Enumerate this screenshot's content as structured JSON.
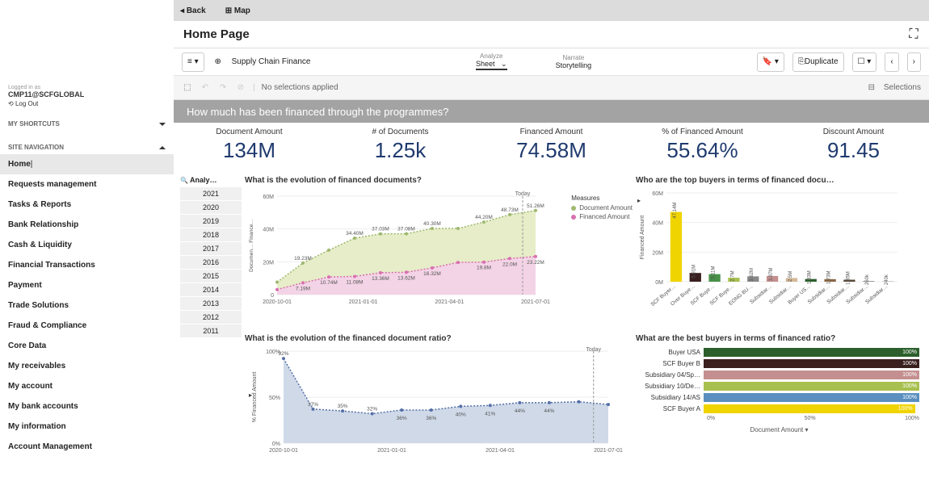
{
  "top": {
    "back": "Back",
    "map": "Map"
  },
  "page_title": "Home Page",
  "toolbar": {
    "app_label": "Supply Chain Finance",
    "tab_analyze_sm": "Analyze",
    "tab_analyze": "Sheet",
    "tab_narrate_sm": "Narrate",
    "tab_narrate": "Storytelling",
    "duplicate": "Duplicate"
  },
  "selbar": {
    "none": "No selections applied",
    "sel": "Selections"
  },
  "question": "How much has been financed through the programmes?",
  "kpi": [
    {
      "label": "Document Amount",
      "value": "134M"
    },
    {
      "label": "# of Documents",
      "value": "1.25k"
    },
    {
      "label": "Financed Amount",
      "value": "74.58M"
    },
    {
      "label": "% of Financed Amount",
      "value": "55.64%"
    },
    {
      "label": "Discount Amount",
      "value": "91.45"
    }
  ],
  "user": {
    "logged": "Logged in as",
    "name": "CMP11@SCFGLOBAL",
    "logout": "Log Out"
  },
  "sections": {
    "shortcuts": "MY SHORTCUTS",
    "sitenav": "SITE NAVIGATION"
  },
  "nav": [
    "Home",
    "Requests management",
    "Tasks & Reports",
    "Bank Relationship",
    "Cash & Liquidity",
    "Financial Transactions",
    "Payment",
    "Trade Solutions",
    "Fraud & Compliance",
    "Core Data",
    "My receivables",
    "My account",
    "My bank accounts",
    "My information",
    "Account Management"
  ],
  "years": {
    "header": "Analy…",
    "items": [
      "2021",
      "2020",
      "2019",
      "2018",
      "2017",
      "2016",
      "2015",
      "2014",
      "2013",
      "2012",
      "2011"
    ]
  },
  "chart1": {
    "title": "What is the evolution of financed documents?",
    "today": "Today",
    "measures_title": "Measures",
    "legend": [
      {
        "label": "Document Amount",
        "color": "#9fb86f"
      },
      {
        "label": "Financed Amount",
        "color": "#d96fb0"
      }
    ],
    "ytick": [
      "0",
      "20M",
      "40M",
      "60M"
    ],
    "xtick": [
      "2020-10-01",
      "2021-01-01",
      "2021-04-01",
      "2021-07-01"
    ],
    "doc_series": [
      7.6,
      19.23,
      27.08,
      34.4,
      37.03,
      37.08,
      40.3,
      40.3,
      44.2,
      48.73,
      51.26
    ],
    "doc_labels": [
      "",
      "19.23M",
      "",
      "34.40M",
      "37.03M",
      "37.08M",
      "40.30M",
      "",
      "44.20M",
      "48.73M",
      "51.26M"
    ],
    "fin_series": [
      3.1,
      7.19,
      10.74,
      11.08,
      13.36,
      13.62,
      16.32,
      19.6,
      19.8,
      22.0,
      23.22
    ],
    "fin_labels": [
      "",
      "7.19M",
      "10.74M",
      "11.08M",
      "13.36M",
      "13.62M",
      "16.32M",
      "",
      "19.8M",
      "22.0M",
      "23.22M"
    ],
    "fin_top_labels": [
      "",
      "",
      "",
      "",
      "",
      "",
      "",
      "",
      "",
      "44.61M",
      ""
    ],
    "bg_doc": "#e6edc8",
    "bg_fin": "#f3d4e6",
    "line_doc": "#9fb86f",
    "line_fin": "#d96fb0",
    "ymax": 60
  },
  "chart2": {
    "title": "What is the evolution of the financed document ratio?",
    "today": "Today",
    "ytick": [
      "0%",
      "50%",
      "100%"
    ],
    "xtick": [
      "2020-10-01",
      "2021-01-01",
      "2021-04-01",
      "2021-07-01"
    ],
    "series": [
      92,
      37,
      35,
      32,
      36,
      36,
      40,
      41,
      44,
      44,
      45,
      42
    ],
    "labels": [
      "92%",
      "37%",
      "35%",
      "32%",
      "36%",
      "36%",
      "40%",
      "41%",
      "44%",
      "44%",
      "",
      ""
    ],
    "fill": "#cfd9e8",
    "line": "#5670a8",
    "ymax": 100,
    "yaxis_title": "% Financed Amount"
  },
  "chart3": {
    "title": "Who are the top buyers in terms of financed docu…",
    "ytick": [
      "0M",
      "20M",
      "40M",
      "60M"
    ],
    "bars": [
      {
        "label": "SCF Buyer…",
        "value": 47.14,
        "color": "#f0d400",
        "txt": "47.14M"
      },
      {
        "label": "Over Buye…",
        "value": 5.91,
        "color": "#3a1f1f",
        "txt": "5.91M"
      },
      {
        "label": "SCF Buye…",
        "value": 5.11,
        "color": "#489048",
        "txt": "5.11M"
      },
      {
        "label": "SCF Buye…",
        "value": 2.7,
        "color": "#a8c050",
        "txt": "2.7M"
      },
      {
        "label": "EONG BU…",
        "value": 3.62,
        "color": "#888888",
        "txt": "3.62M"
      },
      {
        "label": "Subsidiar…",
        "value": 3.87,
        "color": "#c48f8f",
        "txt": "3.87M"
      },
      {
        "label": "Subsidiar…",
        "value": 2.5,
        "color": "#d4b896",
        "txt": "2.5M"
      },
      {
        "label": "Buyer US…",
        "value": 1.83,
        "color": "#2c5f2c",
        "txt": "1.83M"
      },
      {
        "label": "Subsidiar…",
        "value": 1.73,
        "color": "#886644",
        "txt": "1.73M"
      },
      {
        "label": "Subsidiar…",
        "value": 1.35,
        "color": "#5a4a3a",
        "txt": "1.35M"
      },
      {
        "label": "Subsidiar…",
        "value": 0.26,
        "color": "#333333",
        "txt": "260k"
      },
      {
        "label": "Subsidiar…",
        "value": 0.24,
        "color": "#999999",
        "txt": "240k"
      }
    ],
    "ymax": 60,
    "yaxis_title": "Financed Amount"
  },
  "chart4": {
    "title": "What are the best buyers in terms of financed ratio?",
    "bars": [
      {
        "label": "Buyer USA",
        "value": 100,
        "color": "#2c5f2c"
      },
      {
        "label": "SCF Buyer B",
        "value": 100,
        "color": "#3a1f1f"
      },
      {
        "label": "Subsidiary 04/Sp…",
        "value": 100,
        "color": "#c48f8f"
      },
      {
        "label": "Subsidiary 10/De…",
        "value": 100,
        "color": "#a8c050"
      },
      {
        "label": "Subsidiary 14/AS",
        "value": 100,
        "color": "#5a8fbf"
      },
      {
        "label": "SCF Buyer A",
        "value": 98,
        "color": "#f0d400"
      }
    ],
    "valtxt": "100%",
    "xticks": [
      "0%",
      "50%",
      "100%"
    ],
    "footer": "Document Amount  ▾"
  }
}
